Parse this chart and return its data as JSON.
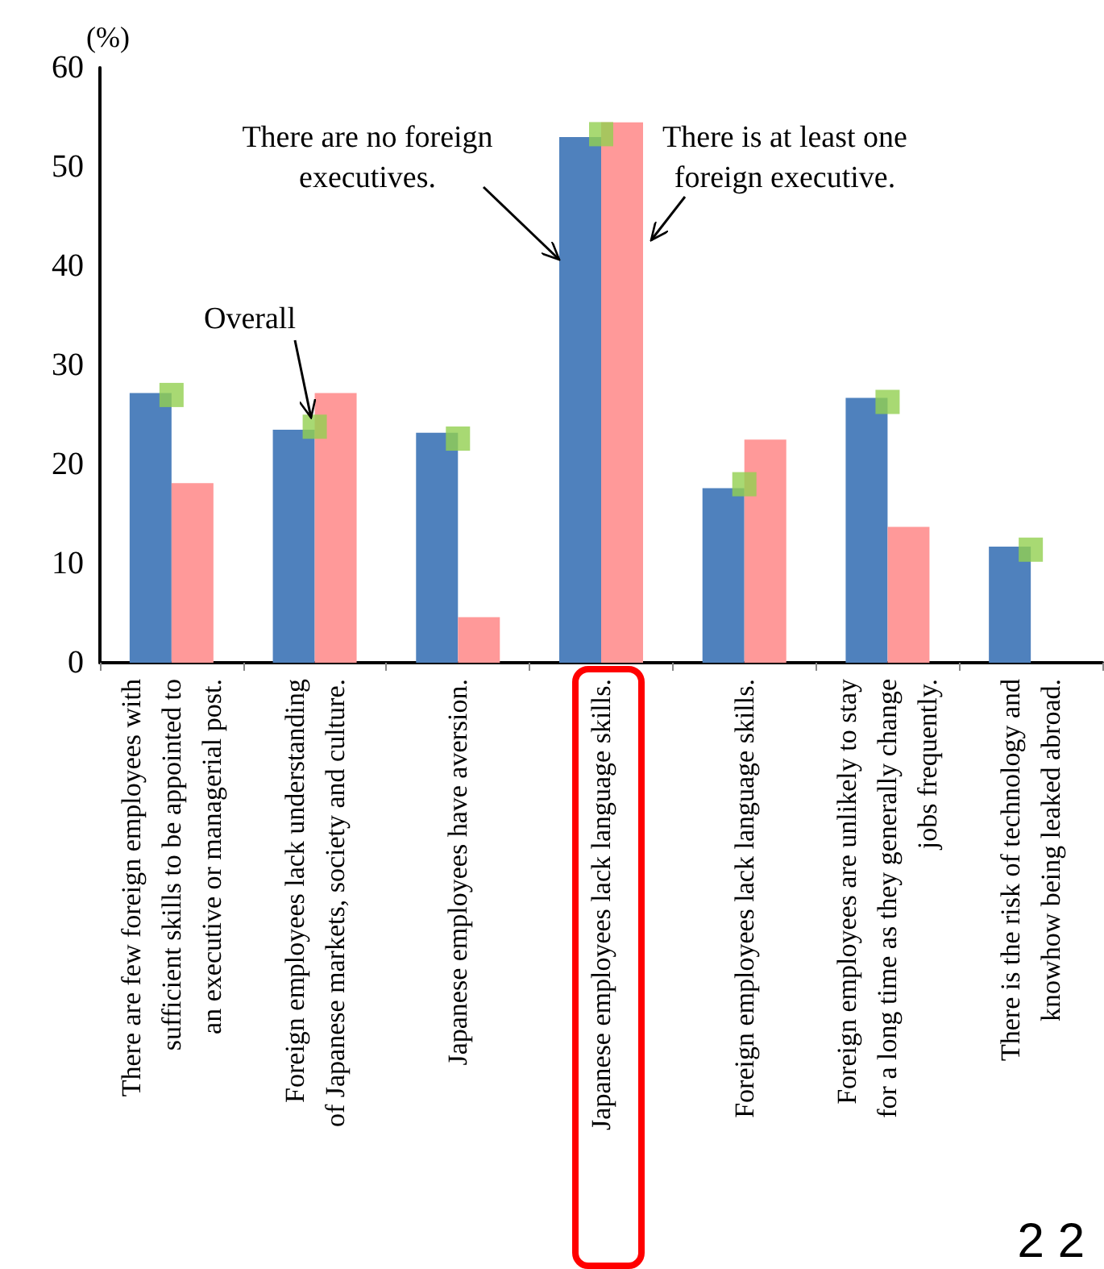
{
  "chart_data": {
    "type": "bar",
    "ylabel": "(%)",
    "categories": [
      "There are few foreign employees with\nsufficient skills to be appointed to\nan executive or managerial post.",
      "Foreign employees lack understanding\nof Japanese markets, society and culture.",
      "Japanese employees have aversion.",
      "Japanese employees lack language skills.",
      "Foreign employees lack language skills.",
      "Foreign employees are unlikely to stay\nfor a long time as they generally change\njobs frequently.",
      "There is the risk of technology and\nknowhow being leaked abroad."
    ],
    "series": [
      {
        "name": "There are no foreign\nexecutives.",
        "color": "#4f81bd",
        "values": [
          27.2,
          23.5,
          23.2,
          53.0,
          17.6,
          26.7,
          11.7
        ]
      },
      {
        "name": "There is at least one\nforeign executive.",
        "color": "#ff9999",
        "values": [
          18.1,
          27.2,
          4.6,
          54.5,
          22.5,
          13.7,
          null
        ]
      },
      {
        "name": "Overall",
        "type": "scatter",
        "color": "#92d050",
        "values": [
          27.0,
          23.8,
          22.6,
          53.3,
          18.0,
          26.3,
          11.4
        ]
      }
    ],
    "ylim": [
      0,
      60
    ],
    "yticks": [
      0,
      10,
      20,
      30,
      40,
      50,
      60
    ],
    "grid": false,
    "legend": false,
    "marker": "square",
    "annotations": [
      "2 2"
    ]
  }
}
